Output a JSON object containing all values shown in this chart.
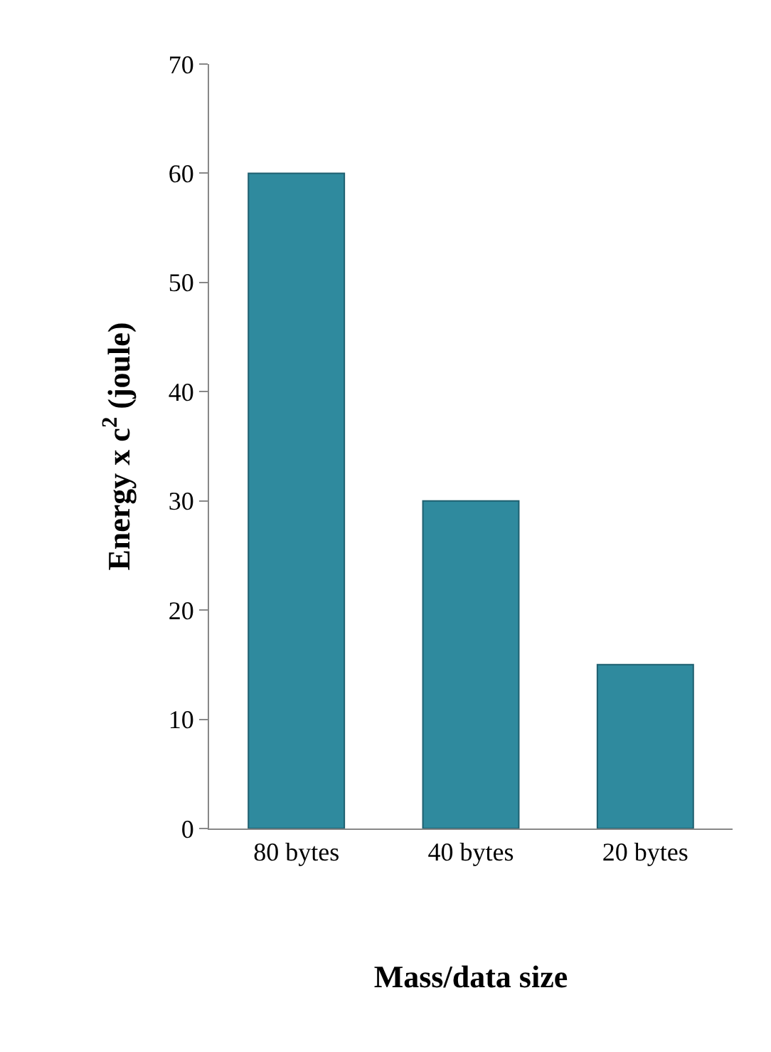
{
  "chart_data": {
    "type": "bar",
    "xlabel": "Mass/data size",
    "ylabel": "Energy x c$^{2}$ (joule)",
    "categories": [
      "80 bytes",
      "40 bytes",
      "20 bytes"
    ],
    "values": [
      60,
      30,
      15
    ],
    "color": "#2f8a9e",
    "ylim": [
      0,
      70
    ],
    "yticks": [
      0,
      10,
      20,
      30,
      40,
      50,
      60,
      70
    ]
  }
}
